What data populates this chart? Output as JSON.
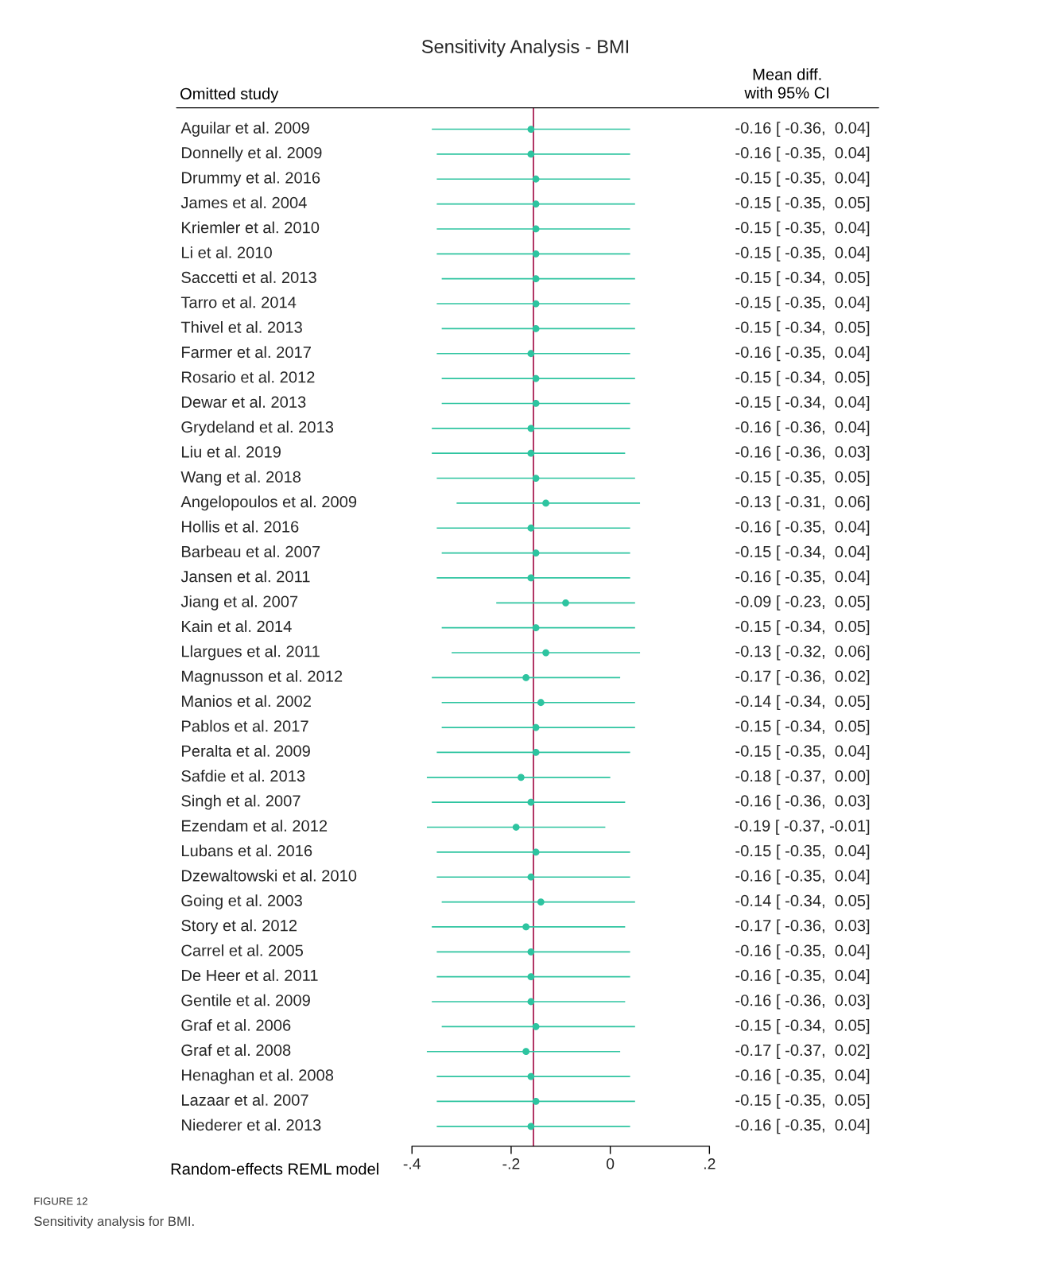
{
  "chart_data": {
    "type": "scatter",
    "orientation": "horizontal",
    "title": "Sensitivity Analysis - BMI",
    "categories": [
      "Aguilar et al. 2009",
      "Donnelly et al. 2009",
      "Drummy et al. 2016",
      "James et al. 2004",
      "Kriemler et al. 2010",
      "Li et al. 2010",
      "Saccetti et al. 2013",
      "Tarro et al. 2014",
      "Thivel et al. 2013",
      "Farmer et al. 2017",
      "Rosario et al. 2012",
      "Dewar et al. 2013",
      "Grydeland et al. 2013",
      "Liu et al. 2019",
      "Wang et al. 2018",
      "Angelopoulos et al. 2009",
      "Hollis et al. 2016",
      "Barbeau et al. 2007",
      "Jansen et al. 2011",
      "Jiang et al. 2007",
      "Kain et al. 2014",
      "Llargues et al. 2011",
      "Magnusson et al. 2012",
      "Manios et al. 2002",
      "Pablos et al. 2017",
      "Peralta et al. 2009",
      "Safdie et al. 2013",
      "Singh et al. 2007",
      "Ezendam et al. 2012",
      "Lubans et al. 2016",
      "Dzewaltowski et al. 2010",
      "Going et al. 2003",
      "Story et al. 2012",
      "Carrel et al. 2005",
      "De Heer et al. 2011",
      "Gentile et al. 2009",
      "Graf et al. 2006",
      "Graf et al. 2008",
      "Henaghan et al. 2008",
      "Lazaar et al. 2007",
      "Niederer et al. 2013"
    ],
    "values": [
      -0.16,
      -0.16,
      -0.15,
      -0.15,
      -0.15,
      -0.15,
      -0.15,
      -0.15,
      -0.15,
      -0.16,
      -0.15,
      -0.15,
      -0.16,
      -0.16,
      -0.15,
      -0.13,
      -0.16,
      -0.15,
      -0.16,
      -0.09,
      -0.15,
      -0.13,
      -0.17,
      -0.14,
      -0.15,
      -0.15,
      -0.18,
      -0.16,
      -0.19,
      -0.15,
      -0.16,
      -0.14,
      -0.17,
      -0.16,
      -0.16,
      -0.16,
      -0.15,
      -0.17,
      -0.16,
      -0.15,
      -0.16
    ],
    "errors": [
      [
        -0.36,
        0.04
      ],
      [
        -0.35,
        0.04
      ],
      [
        -0.35,
        0.04
      ],
      [
        -0.35,
        0.05
      ],
      [
        -0.35,
        0.04
      ],
      [
        -0.35,
        0.04
      ],
      [
        -0.34,
        0.05
      ],
      [
        -0.35,
        0.04
      ],
      [
        -0.34,
        0.05
      ],
      [
        -0.35,
        0.04
      ],
      [
        -0.34,
        0.05
      ],
      [
        -0.34,
        0.04
      ],
      [
        -0.36,
        0.04
      ],
      [
        -0.36,
        0.03
      ],
      [
        -0.35,
        0.05
      ],
      [
        -0.31,
        0.06
      ],
      [
        -0.35,
        0.04
      ],
      [
        -0.34,
        0.04
      ],
      [
        -0.35,
        0.04
      ],
      [
        -0.23,
        0.05
      ],
      [
        -0.34,
        0.05
      ],
      [
        -0.32,
        0.06
      ],
      [
        -0.36,
        0.02
      ],
      [
        -0.34,
        0.05
      ],
      [
        -0.34,
        0.05
      ],
      [
        -0.35,
        0.04
      ],
      [
        -0.37,
        0.0
      ],
      [
        -0.36,
        0.03
      ],
      [
        -0.37,
        -0.01
      ],
      [
        -0.35,
        0.04
      ],
      [
        -0.35,
        0.04
      ],
      [
        -0.34,
        0.05
      ],
      [
        -0.36,
        0.03
      ],
      [
        -0.35,
        0.04
      ],
      [
        -0.35,
        0.04
      ],
      [
        -0.36,
        0.03
      ],
      [
        -0.34,
        0.05
      ],
      [
        -0.37,
        0.02
      ],
      [
        -0.35,
        0.04
      ],
      [
        -0.35,
        0.05
      ],
      [
        -0.35,
        0.04
      ]
    ],
    "value_labels": [
      "-0.16 [ -0.36,  0.04]",
      "-0.16 [ -0.35,  0.04]",
      "-0.15 [ -0.35,  0.04]",
      "-0.15 [ -0.35,  0.05]",
      "-0.15 [ -0.35,  0.04]",
      "-0.15 [ -0.35,  0.04]",
      "-0.15 [ -0.34,  0.05]",
      "-0.15 [ -0.35,  0.04]",
      "-0.15 [ -0.34,  0.05]",
      "-0.16 [ -0.35,  0.04]",
      "-0.15 [ -0.34,  0.05]",
      "-0.15 [ -0.34,  0.04]",
      "-0.16 [ -0.36,  0.04]",
      "-0.16 [ -0.36,  0.03]",
      "-0.15 [ -0.35,  0.05]",
      "-0.13 [ -0.31,  0.06]",
      "-0.16 [ -0.35,  0.04]",
      "-0.15 [ -0.34,  0.04]",
      "-0.16 [ -0.35,  0.04]",
      "-0.09 [ -0.23,  0.05]",
      "-0.15 [ -0.34,  0.05]",
      "-0.13 [ -0.32,  0.06]",
      "-0.17 [ -0.36,  0.02]",
      "-0.14 [ -0.34,  0.05]",
      "-0.15 [ -0.34,  0.05]",
      "-0.15 [ -0.35,  0.04]",
      "-0.18 [ -0.37,  0.00]",
      "-0.16 [ -0.36,  0.03]",
      "-0.19 [ -0.37, -0.01]",
      "-0.15 [ -0.35,  0.04]",
      "-0.16 [ -0.35,  0.04]",
      "-0.14 [ -0.34,  0.05]",
      "-0.17 [ -0.36,  0.03]",
      "-0.16 [ -0.35,  0.04]",
      "-0.16 [ -0.35,  0.04]",
      "-0.16 [ -0.36,  0.03]",
      "-0.15 [ -0.34,  0.05]",
      "-0.17 [ -0.37,  0.02]",
      "-0.16 [ -0.35,  0.04]",
      "-0.15 [ -0.35,  0.05]",
      "-0.16 [ -0.35,  0.04]"
    ],
    "color": "#2ec4a0",
    "marker": "circle",
    "xlim": [
      -0.4,
      0.2
    ],
    "xticks": [
      {
        "value": -0.4,
        "label": "-.4"
      },
      {
        "value": -0.2,
        "label": "-.2"
      },
      0,
      {
        "value": 0.2,
        "label": ".2"
      }
    ],
    "ref_lines": [
      {
        "axis": "x",
        "value": -0.155,
        "color": "#b03060"
      }
    ],
    "grid": false,
    "annotations": [
      "Omitted study",
      "Mean diff.\nwith 95% CI",
      "Random-effects REML model",
      "FIGURE 12",
      "Sensitivity analysis for BMI."
    ]
  }
}
